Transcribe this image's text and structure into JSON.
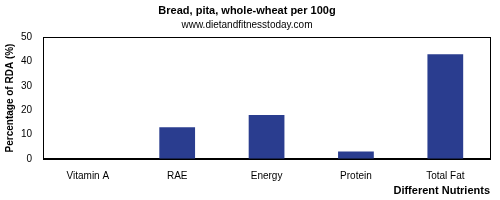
{
  "chart_data": {
    "type": "bar",
    "title": "Bread, pita, whole-wheat per 100g",
    "subtitle": "www.dietandfitnesstoday.com",
    "x_label": "Different Nutrients",
    "y_label": "Percentage of RDA (%)",
    "categories": [
      "Vitamin A",
      "RAE",
      "Energy",
      "Protein",
      "Total Fat"
    ],
    "values": [
      0,
      13,
      18,
      3,
      43
    ],
    "color": "#2a3d8f",
    "ylim": [
      0,
      50
    ],
    "yticks": [
      0,
      10,
      20,
      30,
      40,
      50
    ],
    "grid": false
  }
}
